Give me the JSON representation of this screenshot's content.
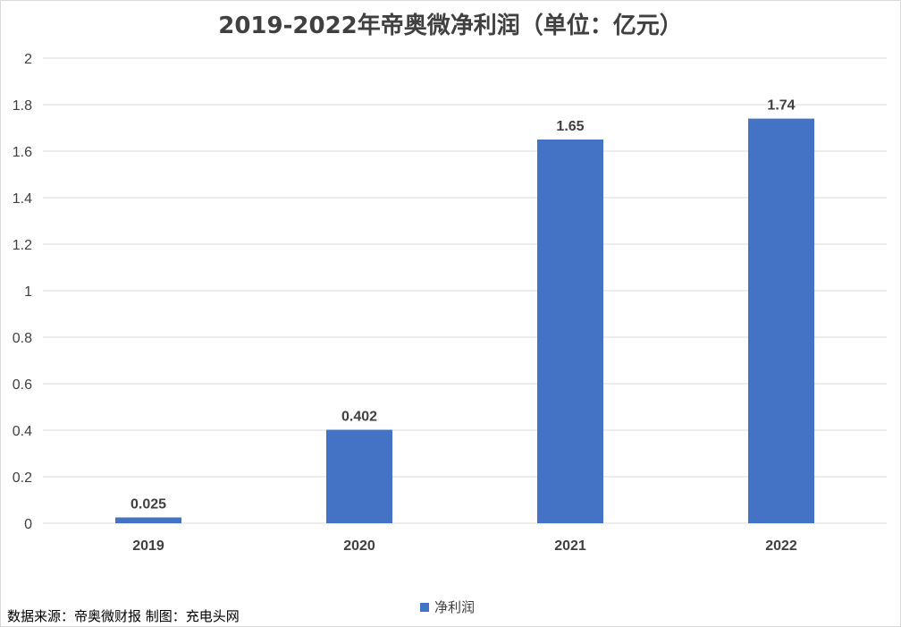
{
  "title": "2019-2022年帝奥微净利润（单位：亿元）",
  "source_note": "数据来源：帝奥微财报  制图：充电头网",
  "colors": {
    "bar": "#4472c4",
    "grid": "#d9d9d9",
    "text": "#404040"
  },
  "chart_data": {
    "type": "bar",
    "title": "2019-2022年帝奥微净利润（单位：亿元）",
    "categories": [
      "2019",
      "2020",
      "2021",
      "2022"
    ],
    "series": [
      {
        "name": "净利润",
        "values": [
          0.025,
          0.402,
          1.65,
          1.74
        ]
      }
    ],
    "data_labels": [
      "0.025",
      "0.402",
      "1.65",
      "1.74"
    ],
    "ylim": [
      0,
      2
    ],
    "yticks": [
      "0",
      "0.2",
      "0.4",
      "0.6",
      "0.8",
      "1",
      "1.2",
      "1.4",
      "1.6",
      "1.8",
      "2"
    ],
    "grid": true,
    "legend": "bottom",
    "xlabel": "",
    "ylabel": ""
  }
}
